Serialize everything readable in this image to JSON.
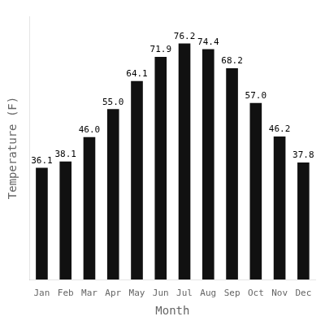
{
  "chart_data": {
    "type": "bar",
    "categories": [
      "Jan",
      "Feb",
      "Mar",
      "Apr",
      "May",
      "Jun",
      "Jul",
      "Aug",
      "Sep",
      "Oct",
      "Nov",
      "Dec"
    ],
    "values": [
      36.1,
      38.1,
      46.0,
      55.0,
      64.1,
      71.9,
      76.2,
      74.4,
      68.2,
      57.0,
      46.2,
      37.8
    ],
    "value_labels": [
      "36.1",
      "38.1",
      "46.0",
      "55.0",
      "64.1",
      "71.9",
      "76.2",
      "74.4",
      "68.2",
      "57.0",
      "46.2",
      "37.8"
    ],
    "color": "#111111",
    "xlabel": "Month",
    "ylabel": "Temperature (F)",
    "ylim": [
      0,
      85
    ],
    "yticks": [],
    "grid": false,
    "data_labels": true,
    "tick_labels": "x"
  }
}
